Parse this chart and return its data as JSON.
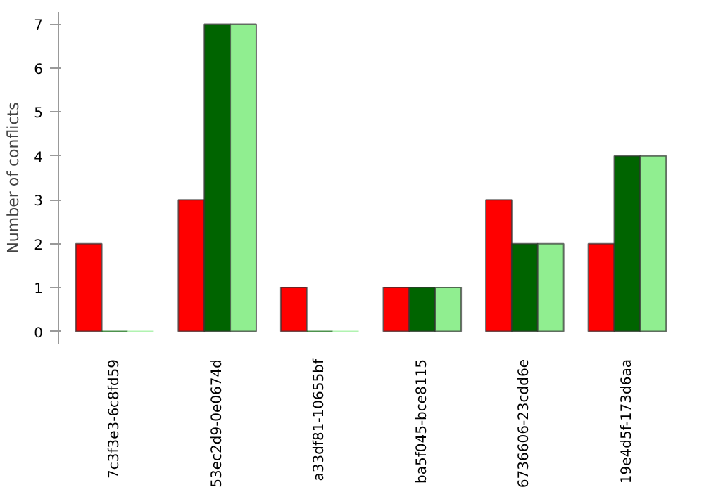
{
  "chart_data": {
    "type": "bar",
    "ylabel": "Number of conflicts",
    "categories": [
      "7c3f3e3-6c8fd59",
      "53ec2d9-0e0674d",
      "a33df81-10655bf",
      "ba5f045-bce8115",
      "6736606-23cdd6e",
      "19e4d5f-173d6aa"
    ],
    "series": [
      {
        "color": "#ff0000",
        "values": [
          2,
          3,
          1,
          1,
          3,
          2
        ]
      },
      {
        "color": "#006400",
        "values": [
          0,
          7,
          0,
          1,
          2,
          4
        ]
      },
      {
        "color": "#90ee90",
        "values": [
          0,
          7,
          0,
          1,
          2,
          4
        ]
      }
    ],
    "ylim": [
      0,
      7
    ],
    "yticks": [
      0,
      1,
      2,
      3,
      4,
      5,
      6,
      7
    ],
    "grid": false
  }
}
